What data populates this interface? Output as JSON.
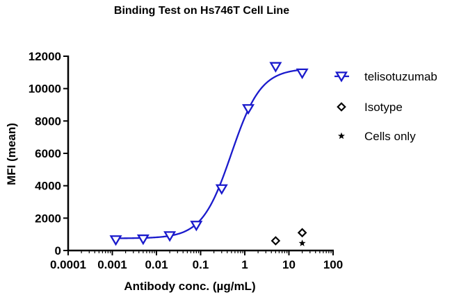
{
  "chart_data": {
    "type": "scatter",
    "title": "Binding Test on Hs746T  Cell Line",
    "xlabel": "Antibody conc. (µg/mL)",
    "ylabel": "MFI (mean)",
    "xscale": "log",
    "xlim": [
      0.0001,
      100
    ],
    "ylim": [
      0,
      12000
    ],
    "x_ticks": [
      0.0001,
      0.001,
      0.01,
      0.1,
      1,
      10,
      100
    ],
    "x_tick_labels": [
      "0.0001",
      "0.001",
      "0.01",
      "0.1",
      "1",
      "10",
      "100"
    ],
    "y_ticks": [
      0,
      2000,
      4000,
      6000,
      8000,
      10000,
      12000
    ],
    "y_tick_labels": [
      "0",
      "2000",
      "4000",
      "6000",
      "8000",
      "10000",
      "12000"
    ],
    "grid": false,
    "legend_position": "right",
    "series": [
      {
        "name": "telisotuzumab",
        "marker": "triangle-down-open",
        "color": "#1a1acc",
        "fit": "sigmoidal 4PL",
        "x": [
          0.0012,
          0.005,
          0.02,
          0.08,
          0.3,
          1.2,
          5,
          20
        ],
        "y": [
          650,
          700,
          900,
          1550,
          3800,
          8750,
          11350,
          10950
        ],
        "fit_params": {
          "bottom": 750,
          "top": 11250,
          "ec50": 0.5,
          "hill": 1.3
        }
      },
      {
        "name": "Isotype",
        "marker": "diamond-open",
        "color": "#000000",
        "x": [
          5,
          20
        ],
        "y": [
          600,
          1100
        ]
      },
      {
        "name": "Cells only",
        "marker": "star",
        "color": "#000000",
        "x": [
          20
        ],
        "y": [
          450
        ]
      }
    ]
  }
}
